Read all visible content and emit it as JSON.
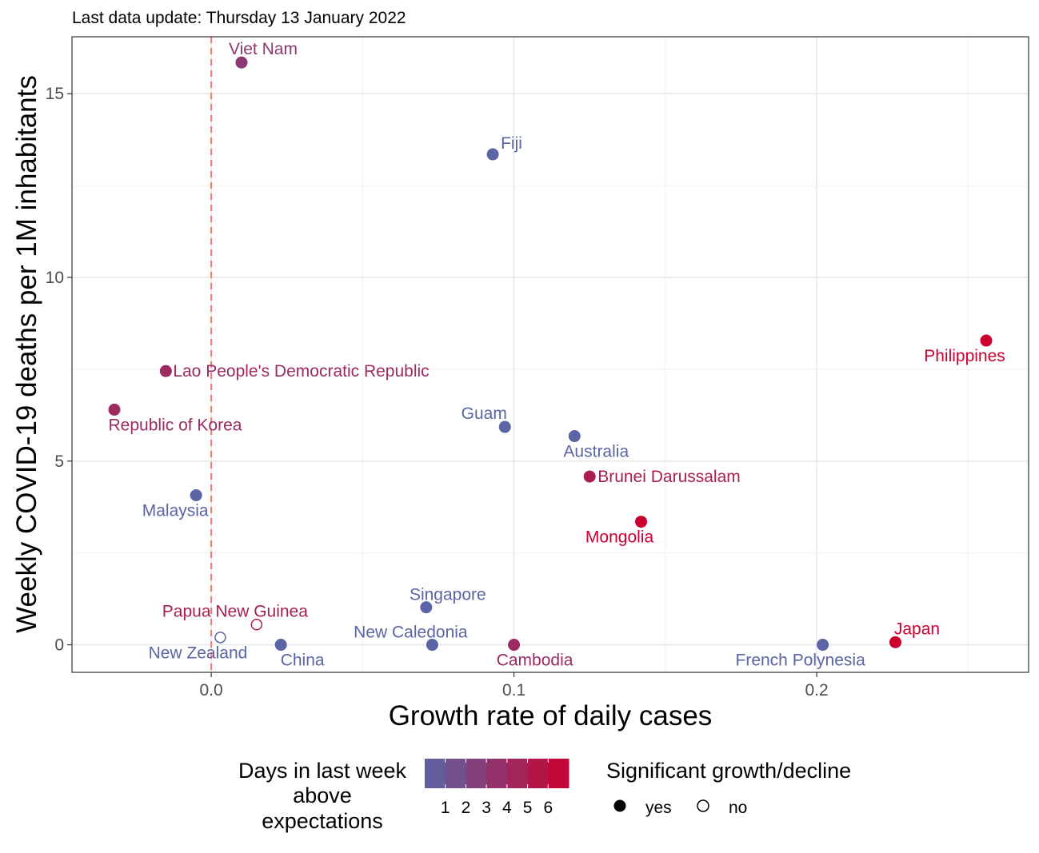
{
  "subtitle": "Last data update: Thursday 13 January 2022",
  "chart_data": {
    "type": "scatter",
    "xlabel": "Growth rate of daily cases",
    "ylabel": "Weekly COVID-19 deaths per 1M inhabitants",
    "xlim": [
      -0.046,
      0.27
    ],
    "ylim": [
      -0.75,
      16.55
    ],
    "x_ticks": [
      0.0,
      0.1,
      0.2
    ],
    "x_tick_labels": [
      "0.0",
      "0.1",
      "0.2"
    ],
    "y_ticks": [
      0,
      5,
      10,
      15
    ],
    "y_tick_labels": [
      "0",
      "5",
      "10",
      "15"
    ],
    "grid": true,
    "reference_line": {
      "x": 0,
      "style": "dashed",
      "color": "#f8766d"
    },
    "color_scale": {
      "low": "#5b64a4",
      "high": "#cb0030",
      "min": 0,
      "max": 7
    },
    "points": [
      {
        "label": "Viet Nam",
        "x": 0.01,
        "y": 15.85,
        "days": 3,
        "significant": true
      },
      {
        "label": "Fiji",
        "x": 0.093,
        "y": 13.35,
        "days": 0,
        "significant": true
      },
      {
        "label": "Philippines",
        "x": 0.256,
        "y": 8.28,
        "days": 7,
        "significant": true
      },
      {
        "label": "Lao People's Democratic Republic",
        "x": -0.015,
        "y": 7.45,
        "days": 4,
        "significant": true
      },
      {
        "label": "Republic of Korea",
        "x": -0.032,
        "y": 6.4,
        "days": 4,
        "significant": true
      },
      {
        "label": "Guam",
        "x": 0.097,
        "y": 5.93,
        "days": 0,
        "significant": true
      },
      {
        "label": "Australia",
        "x": 0.12,
        "y": 5.68,
        "days": 0,
        "significant": true
      },
      {
        "label": "Brunei Darussalam",
        "x": 0.125,
        "y": 4.58,
        "days": 5,
        "significant": true
      },
      {
        "label": "Malaysia",
        "x": -0.005,
        "y": 4.07,
        "days": 0,
        "significant": true
      },
      {
        "label": "Mongolia",
        "x": 0.142,
        "y": 3.35,
        "days": 7,
        "significant": true
      },
      {
        "label": "Singapore",
        "x": 0.071,
        "y": 1.02,
        "days": 0,
        "significant": true
      },
      {
        "label": "Papua New Guinea",
        "x": 0.015,
        "y": 0.55,
        "days": 5,
        "significant": false
      },
      {
        "label": "New Zealand",
        "x": 0.003,
        "y": 0.2,
        "days": 0,
        "significant": false
      },
      {
        "label": "China",
        "x": 0.023,
        "y": 0.0,
        "days": 0,
        "significant": true
      },
      {
        "label": "New Caledonia",
        "x": 0.073,
        "y": 0.0,
        "days": 0,
        "significant": true
      },
      {
        "label": "Cambodia",
        "x": 0.1,
        "y": 0.0,
        "days": 4,
        "significant": true
      },
      {
        "label": "French Polynesia",
        "x": 0.202,
        "y": 0.0,
        "days": 0,
        "significant": true
      },
      {
        "label": "Japan",
        "x": 0.226,
        "y": 0.07,
        "days": 7,
        "significant": true
      }
    ],
    "legend": {
      "color_title": "Days in last week above expectations",
      "color_title_lines": [
        "Days in last week",
        "above",
        "expectations"
      ],
      "color_ticks": [
        "1",
        "2",
        "3",
        "4",
        "5",
        "6"
      ],
      "shape_title": "Significant growth/decline",
      "shape_items": [
        {
          "label": "yes",
          "filled": true
        },
        {
          "label": "no",
          "filled": false
        }
      ],
      "placement": "bottom"
    }
  }
}
